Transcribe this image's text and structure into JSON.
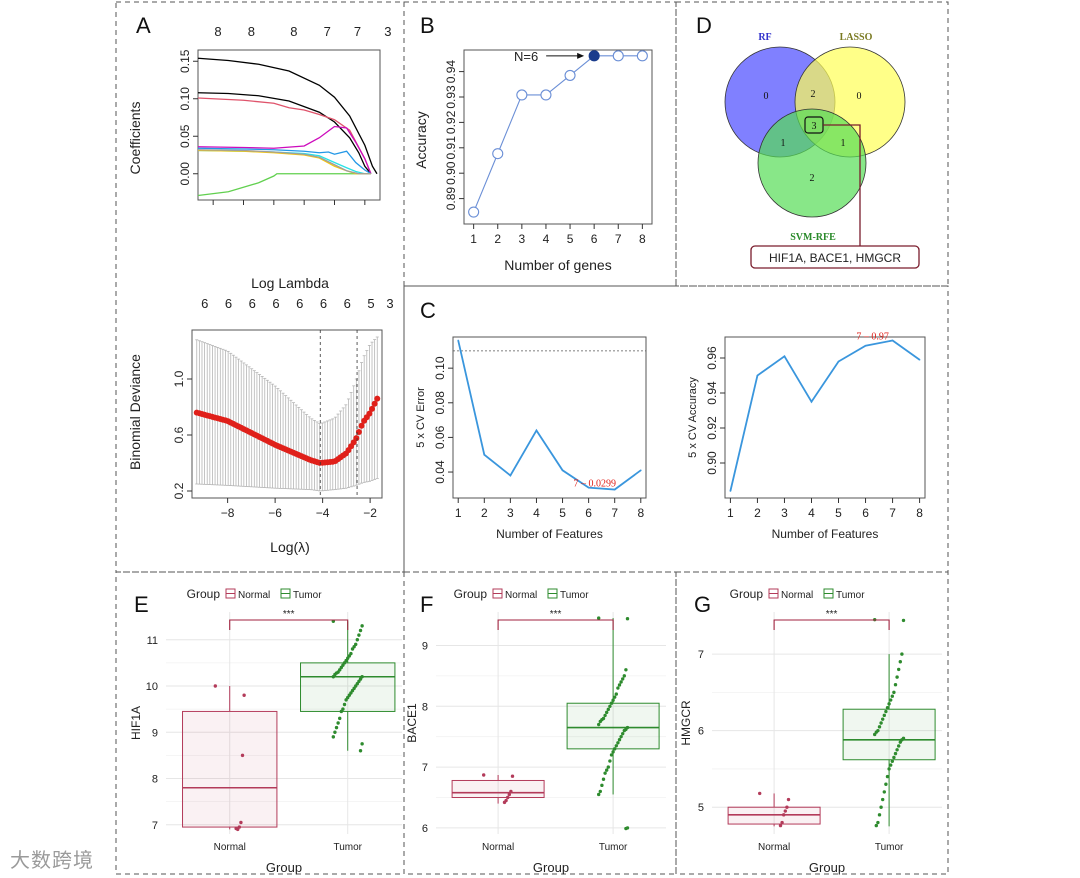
{
  "panel_letters": {
    "a": "A",
    "b": "B",
    "c": "C",
    "d": "D",
    "e": "E",
    "f": "F",
    "g": "G"
  },
  "watermark": "大数跨境",
  "colors": {
    "blue_line": "#3a96dd",
    "b_line": "#6b8fd6",
    "b_highlight": "#1a3c8c",
    "red_dot": "#e0201a",
    "normal": "#b33b5a",
    "tumor": "#2e8b2e",
    "sig": "#a0223f",
    "callout": "#7a1c2c",
    "venn_rf": "#5555ff",
    "venn_lasso": "#ffff55",
    "venn_svm": "#55dd55"
  },
  "chart_data": [
    {
      "id": "A_top",
      "type": "line",
      "title": "",
      "xlabel": "Log Lambda",
      "ylabel": "Coefficients",
      "xlim": [
        -7.5,
        -1.5
      ],
      "ylim": [
        -0.035,
        0.165
      ],
      "xticks": [
        -7,
        -6,
        -5,
        -4,
        -3,
        -2
      ],
      "yticks": [
        0.0,
        0.05,
        0.1,
        0.15
      ],
      "ytick_labels": [
        "0.00",
        "0.05",
        "0.10",
        "0.15"
      ],
      "top_axis": {
        "at": [
          -7.5,
          -6.4,
          -5.0,
          -3.9,
          -2.9,
          -1.9
        ],
        "labels": [
          "8",
          "8",
          "8",
          "7",
          "7",
          "3"
        ]
      },
      "series": [
        {
          "name": "path1",
          "color": "#000000",
          "x": [
            -7.5,
            -6.5,
            -5.5,
            -4.5,
            -3.5,
            -3.0,
            -2.5,
            -2.0,
            -1.75,
            -1.6
          ],
          "y": [
            0.154,
            0.151,
            0.146,
            0.137,
            0.118,
            0.102,
            0.077,
            0.038,
            0.01,
            0.0
          ]
        },
        {
          "name": "path2",
          "color": "#000000",
          "x": [
            -7.5,
            -6.5,
            -5.5,
            -4.5,
            -3.5,
            -3.0,
            -2.5,
            -2.2,
            -2.0,
            -1.8
          ],
          "y": [
            0.108,
            0.107,
            0.104,
            0.097,
            0.082,
            0.069,
            0.048,
            0.028,
            0.01,
            0.0
          ]
        },
        {
          "name": "path3",
          "color": "#df536b",
          "x": [
            -7.5,
            -6.0,
            -5.0,
            -4.5,
            -4.0,
            -3.5,
            -3.0,
            -2.5,
            -2.0,
            -1.8
          ],
          "y": [
            0.101,
            0.098,
            0.094,
            0.088,
            0.085,
            0.079,
            0.072,
            0.058,
            0.02,
            0.0
          ]
        },
        {
          "name": "path4",
          "color": "#cd0bbc",
          "x": [
            -7.5,
            -6.0,
            -5.0,
            -4.0,
            -3.5,
            -3.0,
            -2.6,
            -2.3,
            -2.0,
            -1.8
          ],
          "y": [
            0.036,
            0.035,
            0.034,
            0.037,
            0.048,
            0.063,
            0.061,
            0.042,
            0.02,
            0.0
          ]
        },
        {
          "name": "path5",
          "color": "#61d04f",
          "x": [
            -7.5,
            -6.5,
            -5.5,
            -5.0,
            -4.9,
            -3.0,
            -1.8
          ],
          "y": [
            -0.029,
            -0.024,
            -0.012,
            -0.003,
            0.0,
            0.0,
            0.0
          ]
        },
        {
          "name": "path6",
          "color": "#2297e6",
          "x": [
            -7.5,
            -6.0,
            -5.0,
            -4.0,
            -3.5,
            -3.2,
            -3.0,
            -2.6,
            -2.3,
            -2.0,
            -1.8
          ],
          "y": [
            0.034,
            0.033,
            0.032,
            0.03,
            0.028,
            0.029,
            0.026,
            0.03,
            0.015,
            0.005,
            0.0
          ]
        },
        {
          "name": "path7",
          "color": "#28e2e5",
          "x": [
            -7.5,
            -6.0,
            -5.0,
            -4.0,
            -3.5,
            -3.0,
            -2.6,
            -2.3,
            -2.0,
            -1.8
          ],
          "y": [
            0.031,
            0.03,
            0.029,
            0.027,
            0.024,
            0.015,
            0.008,
            0.003,
            0.0,
            0.0
          ]
        },
        {
          "name": "path8",
          "color": "#f5c710",
          "x": [
            -7.5,
            -6.0,
            -5.0,
            -4.0,
            -3.5,
            -3.0,
            -2.6,
            -2.3,
            -2.0,
            -1.8
          ],
          "y": [
            0.031,
            0.03,
            0.028,
            0.025,
            0.021,
            0.01,
            0.004,
            0.0,
            0.0,
            0.0
          ]
        },
        {
          "name": "path9",
          "color": "#9e9e9e",
          "x": [
            -7.5,
            -6.0,
            -5.0,
            -4.0,
            -3.5,
            -3.0,
            -2.6,
            -2.2,
            -1.8
          ],
          "y": [
            0.032,
            0.031,
            0.029,
            0.026,
            0.022,
            0.012,
            0.004,
            0.0,
            0.0
          ]
        }
      ]
    },
    {
      "id": "A_bottom",
      "type": "line",
      "title": "",
      "xlabel": "Log(λ)",
      "ylabel": "Binomial Deviance",
      "xlim": [
        -9.5,
        -1.5
      ],
      "ylim": [
        0.15,
        1.35
      ],
      "xticks": [
        -8,
        -6,
        -4,
        -2
      ],
      "yticks": [
        0.2,
        0.6,
        1.0
      ],
      "ytick_labels": [
        "0.2",
        "0.6",
        "1.0"
      ],
      "top_axis": {
        "at": [
          -9.3,
          -8.3,
          -7.3,
          -6.3,
          -5.3,
          -4.3,
          -3.3,
          -2.3,
          -1.5
        ],
        "labels": [
          "6",
          "6",
          "6",
          "6",
          "6",
          "6",
          "6",
          "5",
          "3"
        ]
      },
      "cv_curve": {
        "x_from": -9.3,
        "x_to": -1.7,
        "n": 70,
        "mean_knots_x": [
          -9.3,
          -8.0,
          -6.0,
          -4.5,
          -4.1,
          -3.5,
          -3.0,
          -2.6,
          -2.3,
          -2.0,
          -1.7
        ],
        "mean_knots_y": [
          0.76,
          0.7,
          0.53,
          0.42,
          0.4,
          0.41,
          0.47,
          0.57,
          0.69,
          0.76,
          0.86
        ],
        "upper_knots_y": [
          1.28,
          1.2,
          0.95,
          0.72,
          0.68,
          0.72,
          0.82,
          0.99,
          1.15,
          1.25,
          1.3
        ],
        "lower_knots_y": [
          0.25,
          0.24,
          0.22,
          0.21,
          0.2,
          0.21,
          0.22,
          0.24,
          0.26,
          0.27,
          0.29
        ]
      },
      "vlines": [
        -4.1,
        -2.55
      ]
    },
    {
      "id": "B",
      "type": "line",
      "title": "",
      "xlabel": "Number of genes",
      "ylabel": "Accuracy",
      "xlim": [
        0.6,
        8.4
      ],
      "ylim": [
        0.88,
        0.9485
      ],
      "x": [
        1,
        2,
        3,
        4,
        5,
        6,
        7,
        8
      ],
      "values": [
        0.8847,
        0.9077,
        0.9308,
        0.9308,
        0.9385,
        0.9462,
        0.9462,
        0.9462
      ],
      "yticks": [
        0.89,
        0.9,
        0.91,
        0.92,
        0.93,
        0.94
      ],
      "ytick_labels": [
        "0.89",
        "0.90",
        "0.91",
        "0.92",
        "0.93",
        "0.94"
      ],
      "highlight_index": 5,
      "annotation": "N=6"
    },
    {
      "id": "C_left",
      "type": "line",
      "title": "",
      "xlabel": "Number of Features",
      "ylabel": "5 x CV Error",
      "xlim": [
        0.8,
        8.2
      ],
      "ylim": [
        0.025,
        0.118
      ],
      "x": [
        1,
        2,
        3,
        4,
        5,
        6,
        7,
        8
      ],
      "values": [
        0.116,
        0.05,
        0.038,
        0.064,
        0.041,
        0.031,
        0.0299,
        0.041
      ],
      "yticks": [
        0.04,
        0.06,
        0.08,
        0.1
      ],
      "ytick_labels": [
        "0.04",
        "0.06",
        "0.08",
        "0.10"
      ],
      "hline": 0.11,
      "annotation": "7 – 0.0299"
    },
    {
      "id": "C_right",
      "type": "line",
      "title": "",
      "xlabel": "Number of Features",
      "ylabel": "5 x CV Accuracy",
      "xlim": [
        0.8,
        8.2
      ],
      "ylim": [
        0.88,
        0.972
      ],
      "x": [
        1,
        2,
        3,
        4,
        5,
        6,
        7,
        8
      ],
      "values": [
        0.884,
        0.95,
        0.961,
        0.935,
        0.958,
        0.967,
        0.97,
        0.959
      ],
      "yticks": [
        0.9,
        0.92,
        0.94,
        0.96
      ],
      "ytick_labels": [
        "0.90",
        "0.92",
        "0.94",
        "0.96"
      ],
      "annotation": "7 – 0.97"
    },
    {
      "id": "E",
      "type": "box",
      "title": "",
      "ylabel": "HIF1A",
      "xlabel": "Group",
      "ylim": [
        6.8,
        11.6
      ],
      "yticks": [
        7,
        8,
        9,
        10,
        11
      ],
      "ytick_labels": [
        "7",
        "8",
        "9",
        "10",
        "11"
      ],
      "legend_title": "Group",
      "legend_labels": [
        "Normal",
        "Tumor"
      ],
      "significance": "***",
      "groups": [
        {
          "name": "Normal",
          "q1": 6.95,
          "median": 7.8,
          "q3": 9.45,
          "whisker_low": 6.9,
          "whisker_high": 10.0,
          "points": [
            10.0,
            9.8,
            8.5,
            7.05,
            6.95,
            6.9,
            6.92
          ]
        },
        {
          "name": "Tumor",
          "q1": 9.45,
          "median": 10.2,
          "q3": 10.5,
          "whisker_low": 8.6,
          "whisker_high": 11.4,
          "points": [
            11.4,
            11.3,
            11.2,
            11.1,
            11.0,
            10.9,
            10.85,
            10.8,
            10.7,
            10.65,
            10.6,
            10.55,
            10.5,
            10.45,
            10.4,
            10.35,
            10.3,
            10.28,
            10.25,
            10.2,
            10.2,
            10.15,
            10.1,
            10.05,
            10.0,
            9.95,
            9.9,
            9.85,
            9.8,
            9.75,
            9.7,
            9.6,
            9.5,
            9.45,
            9.3,
            9.2,
            9.1,
            9.0,
            8.9,
            8.75,
            8.6
          ]
        }
      ]
    },
    {
      "id": "F",
      "type": "box",
      "title": "",
      "ylabel": "BACE1",
      "xlabel": "Group",
      "ylim": [
        5.9,
        9.55
      ],
      "yticks": [
        6,
        7,
        8,
        9
      ],
      "ytick_labels": [
        "6",
        "7",
        "8",
        "9"
      ],
      "legend_title": "Group",
      "legend_labels": [
        "Normal",
        "Tumor"
      ],
      "significance": "***",
      "groups": [
        {
          "name": "Normal",
          "q1": 6.5,
          "median": 6.58,
          "q3": 6.78,
          "whisker_low": 6.4,
          "whisker_high": 6.87,
          "points": [
            6.87,
            6.85,
            6.6,
            6.55,
            6.5,
            6.45,
            6.42
          ]
        },
        {
          "name": "Tumor",
          "q1": 7.3,
          "median": 7.65,
          "q3": 8.05,
          "whisker_low": 6.55,
          "whisker_high": 9.45,
          "points": [
            9.45,
            9.44,
            8.6,
            8.5,
            8.45,
            8.4,
            8.35,
            8.3,
            8.2,
            8.15,
            8.1,
            8.05,
            8.0,
            7.95,
            7.9,
            7.85,
            7.8,
            7.78,
            7.75,
            7.7,
            7.65,
            7.62,
            7.6,
            7.55,
            7.5,
            7.45,
            7.4,
            7.35,
            7.3,
            7.25,
            7.2,
            7.1,
            7.0,
            6.95,
            6.9,
            6.8,
            6.7,
            6.6,
            6.55,
            6.0,
            5.99
          ]
        }
      ]
    },
    {
      "id": "G",
      "type": "box",
      "title": "",
      "ylabel": "HMGCR",
      "xlabel": "Group",
      "ylim": [
        4.65,
        7.55
      ],
      "yticks": [
        5,
        6,
        7
      ],
      "ytick_labels": [
        "5",
        "6",
        "7"
      ],
      "legend_title": "Group",
      "legend_labels": [
        "Normal",
        "Tumor"
      ],
      "significance": "***",
      "groups": [
        {
          "name": "Normal",
          "q1": 4.78,
          "median": 4.9,
          "q3": 5.0,
          "whisker_low": 4.75,
          "whisker_high": 5.18,
          "points": [
            5.18,
            5.1,
            5.0,
            4.95,
            4.9,
            4.8,
            4.76
          ]
        },
        {
          "name": "Tumor",
          "q1": 5.62,
          "median": 5.88,
          "q3": 6.28,
          "whisker_low": 4.75,
          "whisker_high": 7.0,
          "points": [
            7.45,
            7.44,
            7.0,
            6.9,
            6.8,
            6.7,
            6.6,
            6.5,
            6.45,
            6.4,
            6.35,
            6.3,
            6.25,
            6.2,
            6.15,
            6.1,
            6.05,
            6.0,
            5.98,
            5.95,
            5.9,
            5.88,
            5.85,
            5.8,
            5.75,
            5.7,
            5.65,
            5.6,
            5.55,
            5.5,
            5.4,
            5.3,
            5.2,
            5.1,
            5.0,
            4.9,
            4.8,
            4.76
          ]
        }
      ]
    },
    {
      "id": "D",
      "type": "venn",
      "sets": [
        "RF",
        "LASSO",
        "SVM-RFE"
      ],
      "regions": {
        "rf_only": "0",
        "lasso_only": "0",
        "svm_only": "2",
        "rf_lasso": "2",
        "rf_svm": "1",
        "lasso_svm": "1",
        "all": "3"
      },
      "callout": "HIF1A, BACE1, HMGCR"
    }
  ]
}
